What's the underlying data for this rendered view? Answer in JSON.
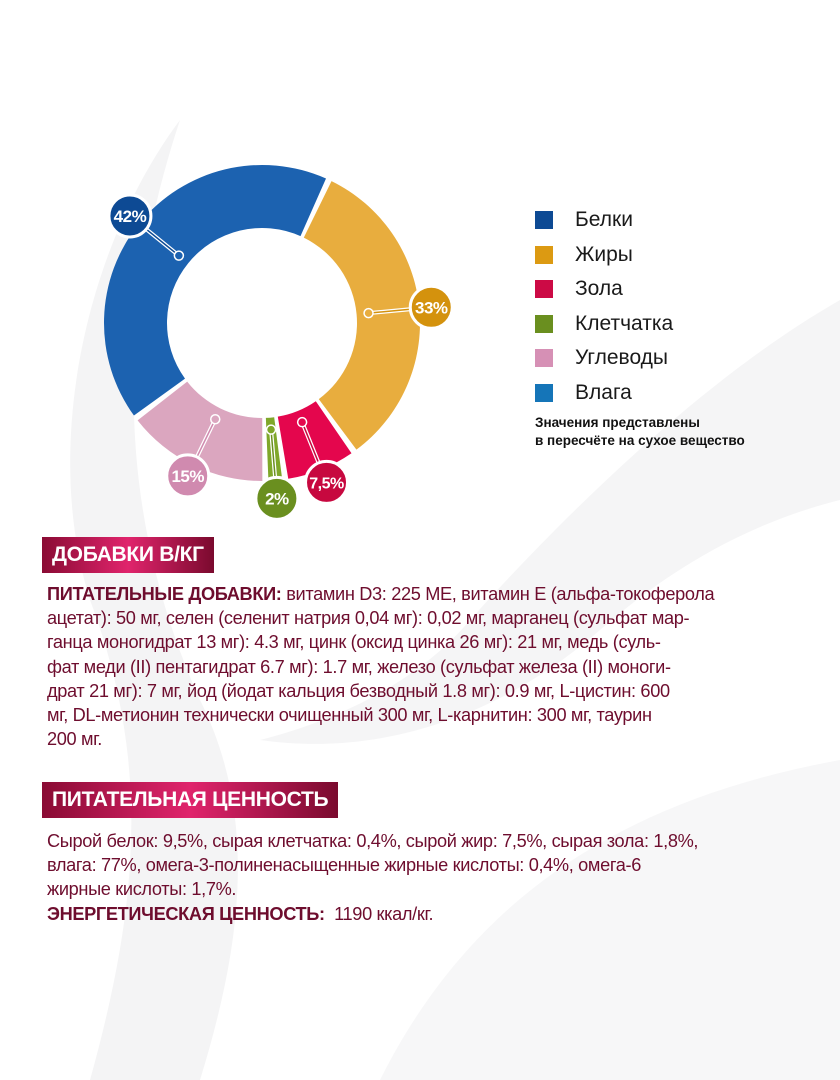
{
  "chart_data": {
    "type": "pie",
    "style": "donut",
    "slices": [
      {
        "label": "Жиры",
        "value": 33,
        "display": "33%",
        "color": "#e8ad3e",
        "badge_color": "#d4920d"
      },
      {
        "label": "Зола",
        "value": 7.5,
        "display": "7,5%",
        "color": "#e4064d",
        "badge_color": "#c7083f"
      },
      {
        "label": "Клетчатка",
        "value": 2,
        "display": "2%",
        "color": "#7fa72a",
        "badge_color": "#6a8f1f"
      },
      {
        "label": "Углеводы",
        "value": 15,
        "display": "15%",
        "color": "#dba6bf",
        "badge_color": "#d08aaf"
      },
      {
        "label": "Белки",
        "value": 42,
        "display": "42%",
        "color": "#1c62b0",
        "badge_color": "#0d4a94"
      }
    ],
    "legend": {
      "placement": "right",
      "items": [
        {
          "label": "Белки",
          "color": "#0d4a94"
        },
        {
          "label": "Жиры",
          "color": "#dc9a12"
        },
        {
          "label": "Зола",
          "color": "#cc0a45"
        },
        {
          "label": "Клетчатка",
          "color": "#6a8f1f"
        },
        {
          "label": "Углеводы",
          "color": "#d690b5"
        },
        {
          "label": "Влага",
          "color": "#1575b8"
        }
      ]
    },
    "note": [
      "Значения представлены",
      "в пересчёте на сухое вещество"
    ]
  },
  "additives": {
    "heading": "ДОБАВКИ В/КГ",
    "label": "ПИТАТЕЛЬНЫЕ ДОБАВКИ:",
    "lines": [
      " витамин D3: 225 МЕ, витамин Е (альфа-токоферола",
      "ацетат): 50 мг, селен (селенит натрия 0,04 мг): 0,02 мг, марганец (сульфат мар-",
      "ганца моногидрат 13 мг): 4.3 мг, цинк (оксид цинка 26 мг): 21 мг, медь (суль-",
      "фат меди (II) пентагидрат 6.7 мг): 1.7 мг, железо (сульфат железа (II) моноги-",
      "драт 21 мг): 7 мг, йод (йодат кальция безводный 1.8 мг): 0.9 мг, L-цистин: 600",
      "мг, DL-метионин технически очищенный 300 мг, L-карнитин: 300 мг, таурин",
      "200 мг."
    ]
  },
  "nutrition": {
    "heading": "ПИТАТЕЛЬНАЯ ЦЕННОСТЬ",
    "lines": [
      "Сырой белок: 9,5%, сырая клетчатка: 0,4%, сырой жир: 7,5%, сырая зола: 1,8%,",
      "влага: 77%, омега-3-полиненасыщенные жирные кислоты: 0,4%, омега-6",
      "жирные кислоты: 1,7%."
    ],
    "energy_label": "ЭНЕРГЕТИЧЕСКАЯ ЦЕННОСТЬ:",
    "energy_value": "1190 ккал/кг."
  }
}
